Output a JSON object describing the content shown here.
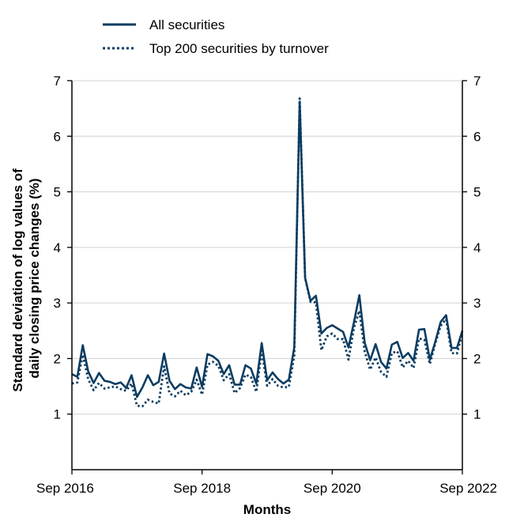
{
  "colors": {
    "series": "#0b3c61",
    "grid": "#d0d0d0",
    "axis": "#000000"
  },
  "chart_data": {
    "type": "line",
    "title": "",
    "xlabel": "Months",
    "ylabel_lines": [
      "Standard deviation of log values of",
      "daily closing price changes (%)"
    ],
    "ylim": [
      0,
      7
    ],
    "yticks": [
      1,
      2,
      3,
      4,
      5,
      6,
      7
    ],
    "xlim": [
      "2016-09",
      "2022-09"
    ],
    "xticks": [
      {
        "date": "2016-09",
        "label": "Sep 2016"
      },
      {
        "date": "2018-09",
        "label": "Sep 2018"
      },
      {
        "date": "2020-09",
        "label": "Sep 2020"
      },
      {
        "date": "2022-09",
        "label": "Sep 2022"
      }
    ],
    "grid": "horizontal",
    "right_axis_mirrored": true,
    "legend_position": "top-left",
    "x": [
      "2016-09",
      "2016-10",
      "2016-11",
      "2016-12",
      "2017-01",
      "2017-02",
      "2017-03",
      "2017-04",
      "2017-05",
      "2017-06",
      "2017-07",
      "2017-08",
      "2017-09",
      "2017-10",
      "2017-11",
      "2017-12",
      "2018-01",
      "2018-02",
      "2018-03",
      "2018-04",
      "2018-05",
      "2018-06",
      "2018-07",
      "2018-08",
      "2018-09",
      "2018-10",
      "2018-11",
      "2018-12",
      "2019-01",
      "2019-02",
      "2019-03",
      "2019-04",
      "2019-05",
      "2019-06",
      "2019-07",
      "2019-08",
      "2019-09",
      "2019-10",
      "2019-11",
      "2019-12",
      "2020-01",
      "2020-02",
      "2020-03",
      "2020-04",
      "2020-05",
      "2020-06",
      "2020-07",
      "2020-08",
      "2020-09",
      "2020-10",
      "2020-11",
      "2020-12",
      "2021-01",
      "2021-02",
      "2021-03",
      "2021-04",
      "2021-05",
      "2021-06",
      "2021-07",
      "2021-08",
      "2021-09",
      "2021-10",
      "2021-11",
      "2021-12",
      "2022-01",
      "2022-02",
      "2022-03",
      "2022-04",
      "2022-05",
      "2022-06",
      "2022-07",
      "2022-08",
      "2022-09"
    ],
    "series": [
      {
        "name": "All securities",
        "style": "solid",
        "values": [
          1.72,
          1.67,
          2.24,
          1.77,
          1.56,
          1.74,
          1.6,
          1.58,
          1.54,
          1.57,
          1.47,
          1.7,
          1.31,
          1.48,
          1.7,
          1.52,
          1.58,
          2.09,
          1.6,
          1.45,
          1.54,
          1.48,
          1.46,
          1.84,
          1.49,
          2.08,
          2.04,
          1.96,
          1.72,
          1.88,
          1.53,
          1.53,
          1.88,
          1.82,
          1.55,
          2.28,
          1.61,
          1.75,
          1.63,
          1.55,
          1.62,
          2.2,
          6.62,
          3.45,
          3.04,
          3.13,
          2.45,
          2.55,
          2.6,
          2.54,
          2.48,
          2.2,
          2.65,
          3.14,
          2.28,
          1.97,
          2.26,
          1.94,
          1.82,
          2.25,
          2.3,
          2.01,
          2.1,
          1.96,
          2.52,
          2.53,
          1.98,
          2.3,
          2.66,
          2.78,
          2.19,
          2.19,
          2.5
        ]
      },
      {
        "name": "Top 200 securities by turnover",
        "style": "dotted",
        "values": [
          1.55,
          1.57,
          2.07,
          1.63,
          1.43,
          1.56,
          1.46,
          1.48,
          1.5,
          1.45,
          1.42,
          1.55,
          1.15,
          1.14,
          1.26,
          1.22,
          1.19,
          1.86,
          1.37,
          1.32,
          1.42,
          1.34,
          1.4,
          1.62,
          1.35,
          1.89,
          1.94,
          1.87,
          1.61,
          1.72,
          1.38,
          1.47,
          1.71,
          1.67,
          1.4,
          2.14,
          1.51,
          1.63,
          1.51,
          1.48,
          1.49,
          2.05,
          6.68,
          3.45,
          3.02,
          3.01,
          2.15,
          2.4,
          2.45,
          2.35,
          2.35,
          1.98,
          2.55,
          2.86,
          2.12,
          1.8,
          2.02,
          1.76,
          1.67,
          2.1,
          2.13,
          1.84,
          1.96,
          1.83,
          2.36,
          2.34,
          1.9,
          2.27,
          2.59,
          2.71,
          2.1,
          2.09,
          2.45
        ]
      }
    ]
  }
}
